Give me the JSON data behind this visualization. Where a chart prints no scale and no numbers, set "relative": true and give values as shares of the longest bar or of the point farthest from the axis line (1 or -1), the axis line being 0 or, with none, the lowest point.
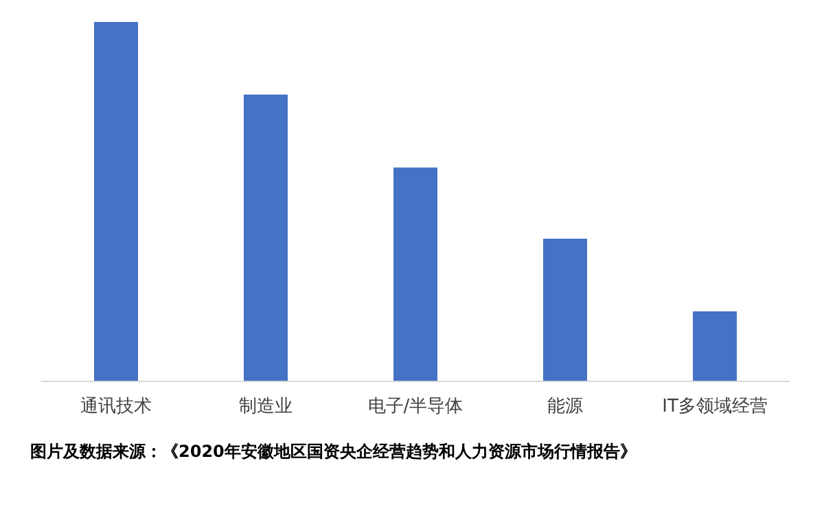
{
  "chart_data": {
    "type": "bar",
    "relative": true,
    "categories": [
      "通讯技术",
      "制造业",
      "电子/半导体",
      "能源",
      "IT多领域经营"
    ],
    "values": [
      1,
      0.798,
      0.595,
      0.397,
      0.195
    ],
    "color": "#4472c4",
    "annotations": [
      "图片及数据来源：《2020年安徽地区国资央企经营趋势和人力资源市场行情报告》"
    ]
  }
}
